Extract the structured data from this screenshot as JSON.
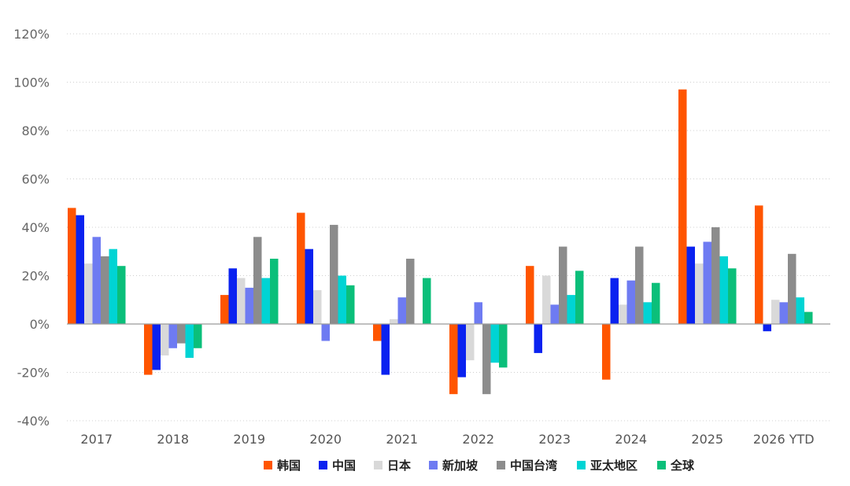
{
  "chart_data": {
    "type": "bar",
    "categories": [
      "2017",
      "2018",
      "2019",
      "2020",
      "2021",
      "2022",
      "2023",
      "2024",
      "2025",
      "2026 YTD"
    ],
    "ylim": [
      -40,
      120
    ],
    "yticks": [
      -40,
      -20,
      0,
      20,
      40,
      60,
      80,
      100,
      120
    ],
    "ytick_labels": [
      "-40%",
      "-20%",
      "0%",
      "20%",
      "40%",
      "60%",
      "80%",
      "100%",
      "120%"
    ],
    "grid": "horizontal-dotted",
    "legend_position": "bottom",
    "series": [
      {
        "name": "韩国",
        "color": "#FF5500",
        "values": [
          48,
          -21,
          12,
          46,
          -7,
          -29,
          24,
          -23,
          97,
          49
        ]
      },
      {
        "name": "中国",
        "color": "#0A22F0",
        "values": [
          45,
          -19,
          23,
          31,
          -21,
          -22,
          -12,
          19,
          32,
          -3
        ]
      },
      {
        "name": "日本",
        "color": "#D9D9D9",
        "values": [
          25,
          -13,
          19,
          14,
          2,
          -15,
          20,
          8,
          25,
          10
        ]
      },
      {
        "name": "新加坡",
        "color": "#6E7BF2",
        "values": [
          36,
          -10,
          15,
          -7,
          11,
          9,
          8,
          18,
          34,
          9
        ]
      },
      {
        "name": "中国台湾",
        "color": "#8C8C8C",
        "values": [
          28,
          -8,
          36,
          41,
          27,
          -29,
          32,
          32,
          40,
          29
        ]
      },
      {
        "name": "亚太地区",
        "color": "#00D4D4",
        "values": [
          31,
          -14,
          19,
          20,
          0,
          -16,
          12,
          9,
          28,
          11
        ]
      },
      {
        "name": "全球",
        "color": "#0BBF7A",
        "values": [
          24,
          -10,
          27,
          16,
          19,
          -18,
          22,
          17,
          23,
          5
        ]
      }
    ]
  }
}
